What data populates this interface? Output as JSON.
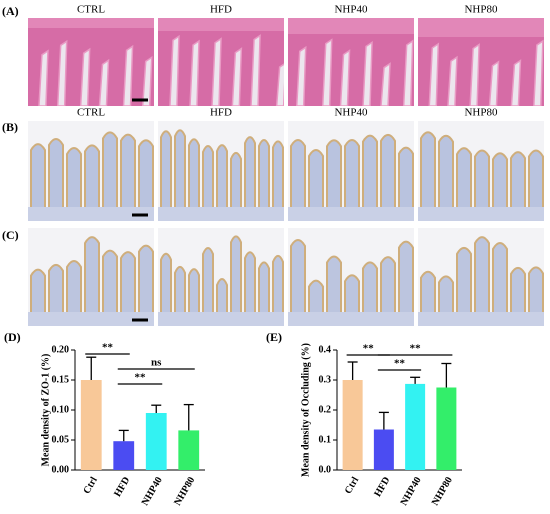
{
  "figure": {
    "panel_labels": [
      "(A)",
      "(B)",
      "(C)",
      "(D)",
      "(E)"
    ],
    "columns": [
      "CTRL",
      "HFD",
      "NHP40",
      "NHP80"
    ]
  },
  "chart_data": [
    {
      "type": "bar",
      "ylabel": "Mean density of ZO-1 (%)",
      "categories": [
        "Ctrl",
        "HFD",
        "NHP40",
        "NHP80"
      ],
      "values": [
        0.15,
        0.048,
        0.095,
        0.066
      ],
      "errors": [
        0.038,
        0.018,
        0.013,
        0.043
      ],
      "colors": [
        "#f8c898",
        "#4b4cf2",
        "#33f2f2",
        "#33ee6a"
      ],
      "ylim": [
        0,
        0.2
      ],
      "yticks": [
        {
          "value": 0,
          "label": "0.00"
        },
        0.05,
        {
          "value": 0.1,
          "label": "0.10"
        },
        0.15,
        {
          "value": 0.2,
          "label": "0.20"
        }
      ],
      "annotations": [
        "**",
        "**",
        "ns"
      ]
    },
    {
      "type": "bar",
      "ylabel": "Mean density of Occluding (%)",
      "categories": [
        "Ctrl",
        "HFD",
        "NHP40",
        "NHP80"
      ],
      "values": [
        0.3,
        0.135,
        0.287,
        0.275
      ],
      "errors": [
        0.06,
        0.057,
        0.022,
        0.08
      ],
      "colors": [
        "#f8c898",
        "#4b4cf2",
        "#33f2f2",
        "#33ee6a"
      ],
      "ylim": [
        0,
        0.4
      ],
      "yticks": [
        {
          "value": 0,
          "label": "0.0"
        },
        0.1,
        0.2,
        0.3,
        0.4
      ],
      "annotations": [
        "**",
        "**",
        "**"
      ]
    }
  ]
}
